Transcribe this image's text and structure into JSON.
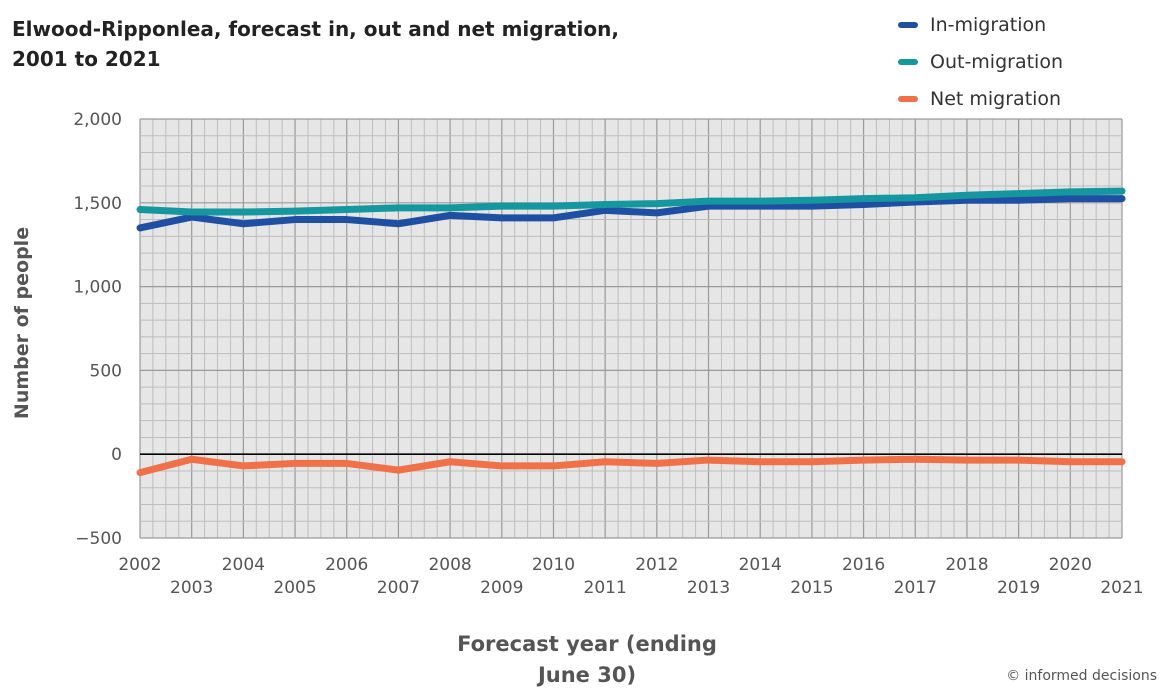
{
  "title_line1": "Elwood-Ripponlea, forecast in, out and net migration,",
  "title_line2": "2001 to 2021",
  "credit": "© informed decisions",
  "chart_data": {
    "type": "line",
    "title": "Elwood-Ripponlea, forecast in, out and net migration, 2001 to 2021",
    "xlabel_line1": "Forecast year (ending",
    "xlabel_line2": "June 30)",
    "ylabel": "Number of people",
    "x": [
      2002,
      2003,
      2004,
      2005,
      2006,
      2007,
      2008,
      2009,
      2010,
      2011,
      2012,
      2013,
      2014,
      2015,
      2016,
      2017,
      2018,
      2019,
      2020,
      2021
    ],
    "x_tick_labels": [
      "2002",
      "2003",
      "2004",
      "2005",
      "2006",
      "2007",
      "2008",
      "2009",
      "2010",
      "2011",
      "2012",
      "2013",
      "2014",
      "2015",
      "2016",
      "2017",
      "2018",
      "2019",
      "2020",
      "2021"
    ],
    "ylim": [
      -500,
      2000
    ],
    "y_ticks": [
      -500,
      0,
      500,
      1000,
      1500,
      2000
    ],
    "y_tick_labels": [
      "−500",
      "0",
      "500",
      "1,000",
      "1,500",
      "2,000"
    ],
    "grid": true,
    "legend_position": "top-right",
    "series": [
      {
        "name": "In-migration",
        "color": "#1f4fa3",
        "values": [
          1350,
          1415,
          1375,
          1400,
          1400,
          1375,
          1425,
          1410,
          1410,
          1455,
          1440,
          1480,
          1480,
          1480,
          1490,
          1505,
          1515,
          1515,
          1525,
          1525
        ]
      },
      {
        "name": "Out-migration",
        "color": "#14979f",
        "values": [
          1460,
          1445,
          1445,
          1450,
          1460,
          1470,
          1470,
          1480,
          1480,
          1490,
          1495,
          1510,
          1510,
          1515,
          1525,
          1530,
          1545,
          1555,
          1565,
          1570
        ]
      },
      {
        "name": "Net migration",
        "color": "#f07148",
        "values": [
          -110,
          -30,
          -70,
          -55,
          -55,
          -95,
          -45,
          -70,
          -70,
          -45,
          -55,
          -35,
          -45,
          -45,
          -35,
          -30,
          -35,
          -35,
          -45,
          -45
        ]
      }
    ]
  }
}
